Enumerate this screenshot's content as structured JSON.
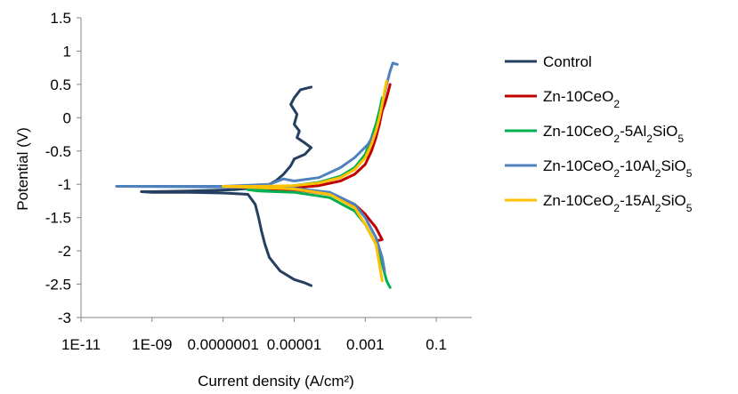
{
  "chart_data": {
    "type": "line",
    "title": "",
    "xlabel": "Current density (A/cm²)",
    "ylabel": "Potential (V)",
    "x_scale": "log",
    "x_ticks": [
      {
        "value": 1e-11,
        "label": "1E-11"
      },
      {
        "value": 1e-09,
        "label": "1E-09"
      },
      {
        "value": 1e-07,
        "label": "0.0000001"
      },
      {
        "value": 1e-05,
        "label": "0.00001"
      },
      {
        "value": 0.001,
        "label": "0.001"
      },
      {
        "value": 0.1,
        "label": "0.1"
      }
    ],
    "y_ticks": [
      {
        "value": 1.5,
        "label": "1.5"
      },
      {
        "value": 1,
        "label": "1"
      },
      {
        "value": 0.5,
        "label": "0.5"
      },
      {
        "value": 0,
        "label": "0"
      },
      {
        "value": -0.5,
        "label": "-0.5"
      },
      {
        "value": -1,
        "label": "-1"
      },
      {
        "value": -1.5,
        "label": "-1.5"
      },
      {
        "value": -2,
        "label": "-2"
      },
      {
        "value": -2.5,
        "label": "-2.5"
      },
      {
        "value": -3,
        "label": "-3"
      }
    ],
    "xlim": [
      1e-11,
      1
    ],
    "ylim": [
      -3,
      1.5
    ],
    "grid": false,
    "legend_position": "right",
    "series": [
      {
        "name": "Control",
        "color": "#243F60",
        "points": [
          [
            3e-05,
            0.46
          ],
          [
            1.5e-05,
            0.42
          ],
          [
            1e-05,
            0.3
          ],
          [
            8e-06,
            0.2
          ],
          [
            1.2e-05,
            0.05
          ],
          [
            1e-05,
            -0.1
          ],
          [
            1.4e-05,
            -0.2
          ],
          [
            1.2e-05,
            -0.3
          ],
          [
            2e-05,
            -0.38
          ],
          [
            3e-05,
            -0.45
          ],
          [
            2e-05,
            -0.55
          ],
          [
            1e-05,
            -0.62
          ],
          [
            8e-06,
            -0.72
          ],
          [
            5e-06,
            -0.85
          ],
          [
            3e-06,
            -0.95
          ],
          [
            2e-06,
            -1.0
          ],
          [
            8e-07,
            -1.05
          ],
          [
            2e-07,
            -1.08
          ],
          [
            5e-08,
            -1.09
          ],
          [
            1e-08,
            -1.1
          ],
          [
            1e-09,
            -1.11
          ],
          [
            5e-10,
            -1.11
          ],
          [
            1e-09,
            -1.12
          ],
          [
            1e-08,
            -1.12
          ],
          [
            1e-07,
            -1.13
          ],
          [
            5e-07,
            -1.15
          ],
          [
            8e-07,
            -1.3
          ],
          [
            1e-06,
            -1.5
          ],
          [
            1.2e-06,
            -1.7
          ],
          [
            1.5e-06,
            -1.9
          ],
          [
            2e-06,
            -2.1
          ],
          [
            4e-06,
            -2.3
          ],
          [
            1e-05,
            -2.43
          ],
          [
            2e-05,
            -2.48
          ],
          [
            3e-05,
            -2.52
          ]
        ]
      },
      {
        "name": "Zn-10CeO2",
        "legend_label": {
          "parts": [
            "Zn-10CeO",
            "2",
            ""
          ]
        },
        "color": "#C00000",
        "points": [
          [
            0.005,
            0.5
          ],
          [
            0.0045,
            0.4
          ],
          [
            0.004,
            0.3
          ],
          [
            0.0035,
            0.2
          ],
          [
            0.003,
            0.1
          ],
          [
            0.0025,
            -0.1
          ],
          [
            0.002,
            -0.3
          ],
          [
            0.0015,
            -0.5
          ],
          [
            0.001,
            -0.7
          ],
          [
            0.0005,
            -0.85
          ],
          [
            0.0002,
            -0.95
          ],
          [
            5e-05,
            -1.02
          ],
          [
            1e-05,
            -1.05
          ],
          [
            1e-06,
            -1.06
          ],
          [
            5e-07,
            -1.06
          ],
          [
            1e-06,
            -1.07
          ],
          [
            1e-05,
            -1.08
          ],
          [
            0.0001,
            -1.15
          ],
          [
            0.0005,
            -1.3
          ],
          [
            0.001,
            -1.45
          ],
          [
            0.002,
            -1.65
          ],
          [
            0.003,
            -1.83
          ],
          [
            0.002,
            -1.85
          ]
        ]
      },
      {
        "name": "Zn-10CeO2-5Al2SiO5",
        "legend_label": {
          "parts": [
            "Zn-10CeO",
            "2",
            "-5Al",
            "2",
            "SiO",
            "5",
            ""
          ]
        },
        "color": "#00B050",
        "points": [
          [
            0.003,
            0.3
          ],
          [
            0.0025,
            0.1
          ],
          [
            0.002,
            -0.1
          ],
          [
            0.0015,
            -0.3
          ],
          [
            0.001,
            -0.55
          ],
          [
            0.0005,
            -0.75
          ],
          [
            0.0002,
            -0.88
          ],
          [
            5e-05,
            -0.97
          ],
          [
            1e-05,
            -1.02
          ],
          [
            1e-06,
            -1.08
          ],
          [
            5e-07,
            -1.08
          ],
          [
            1e-06,
            -1.1
          ],
          [
            1e-05,
            -1.12
          ],
          [
            0.0001,
            -1.2
          ],
          [
            0.0005,
            -1.4
          ],
          [
            0.001,
            -1.6
          ],
          [
            0.002,
            -1.9
          ],
          [
            0.003,
            -2.2
          ],
          [
            0.004,
            -2.45
          ],
          [
            0.005,
            -2.55
          ]
        ]
      },
      {
        "name": "Zn-10CeO2-10Al2SiO5",
        "legend_label": {
          "parts": [
            "Zn-10CeO",
            "2",
            "-10Al",
            "2",
            "SiO",
            "5",
            ""
          ]
        },
        "color": "#4F81BD",
        "points": [
          [
            0.008,
            0.8
          ],
          [
            0.006,
            0.82
          ],
          [
            0.005,
            0.7
          ],
          [
            0.004,
            0.5
          ],
          [
            0.003,
            0.2
          ],
          [
            0.0025,
            0.0
          ],
          [
            0.002,
            -0.2
          ],
          [
            0.0012,
            -0.4
          ],
          [
            0.0005,
            -0.6
          ],
          [
            0.0002,
            -0.75
          ],
          [
            5e-05,
            -0.9
          ],
          [
            1e-05,
            -0.95
          ],
          [
            5e-06,
            -0.92
          ],
          [
            2e-06,
            -1.0
          ],
          [
            1e-07,
            -1.03
          ],
          [
            1e-10,
            -1.03
          ],
          [
            1e-07,
            -1.04
          ],
          [
            1e-05,
            -1.06
          ],
          [
            0.0001,
            -1.12
          ],
          [
            0.0005,
            -1.3
          ],
          [
            0.001,
            -1.5
          ],
          [
            0.002,
            -1.8
          ],
          [
            0.003,
            -2.1
          ],
          [
            0.0035,
            -2.3
          ]
        ]
      },
      {
        "name": "Zn-10CeO2-15Al2SiO5",
        "legend_label": {
          "parts": [
            "Zn-10CeO",
            "2",
            "-15Al",
            "2",
            "SiO",
            "5",
            ""
          ]
        },
        "color": "#FFC000",
        "points": [
          [
            0.004,
            0.55
          ],
          [
            0.0035,
            0.4
          ],
          [
            0.003,
            0.2
          ],
          [
            0.0025,
            0.0
          ],
          [
            0.002,
            -0.2
          ],
          [
            0.0015,
            -0.4
          ],
          [
            0.001,
            -0.6
          ],
          [
            0.0005,
            -0.78
          ],
          [
            0.0002,
            -0.9
          ],
          [
            5e-05,
            -0.98
          ],
          [
            1e-05,
            -1.02
          ],
          [
            1e-06,
            -1.03
          ],
          [
            1e-07,
            -1.03
          ],
          [
            1e-06,
            -1.05
          ],
          [
            1e-05,
            -1.07
          ],
          [
            0.0001,
            -1.15
          ],
          [
            0.0005,
            -1.35
          ],
          [
            0.001,
            -1.6
          ],
          [
            0.002,
            -1.9
          ],
          [
            0.0025,
            -2.2
          ],
          [
            0.003,
            -2.45
          ]
        ]
      }
    ]
  }
}
